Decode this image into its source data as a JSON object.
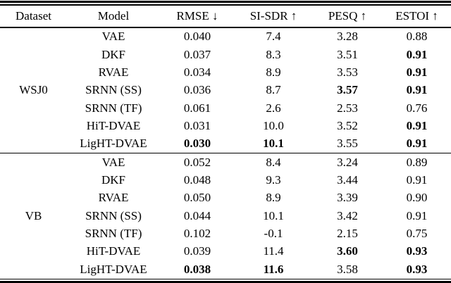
{
  "table": {
    "headers": {
      "dataset": "Dataset",
      "model": "Model",
      "rmse": "RMSE ↓",
      "sisdr": "SI-SDR ↑",
      "pesq": "PESQ ↑",
      "estoi": "ESTOI ↑"
    },
    "sections": [
      {
        "dataset": "WSJ0",
        "rows": [
          {
            "model": "VAE",
            "rmse": "0.040",
            "sisdr": "7.4",
            "pesq": "3.28",
            "estoi": "0.88"
          },
          {
            "model": "DKF",
            "rmse": "0.037",
            "sisdr": "8.3",
            "pesq": "3.51",
            "estoi": "0.91",
            "estoi_b": true
          },
          {
            "model": "RVAE",
            "rmse": "0.034",
            "sisdr": "8.9",
            "pesq": "3.53",
            "estoi": "0.91",
            "estoi_b": true
          },
          {
            "model": "SRNN (SS)",
            "rmse": "0.036",
            "sisdr": "8.7",
            "pesq": "3.57",
            "pesq_b": true,
            "estoi": "0.91",
            "estoi_b": true
          },
          {
            "model": "SRNN (TF)",
            "rmse": "0.061",
            "sisdr": "2.6",
            "pesq": "2.53",
            "estoi": "0.76"
          },
          {
            "model": "HiT-DVAE",
            "rmse": "0.031",
            "sisdr": "10.0",
            "pesq": "3.52",
            "estoi": "0.91",
            "estoi_b": true
          },
          {
            "model": "LigHT-DVAE",
            "rmse": "0.030",
            "rmse_b": true,
            "sisdr": "10.1",
            "sisdr_b": true,
            "pesq": "3.55",
            "estoi": "0.91",
            "estoi_b": true
          }
        ]
      },
      {
        "dataset": "VB",
        "rows": [
          {
            "model": "VAE",
            "rmse": "0.052",
            "sisdr": "8.4",
            "pesq": "3.24",
            "estoi": "0.89"
          },
          {
            "model": "DKF",
            "rmse": "0.048",
            "sisdr": "9.3",
            "pesq": "3.44",
            "estoi": "0.91"
          },
          {
            "model": "RVAE",
            "rmse": "0.050",
            "sisdr": "8.9",
            "pesq": "3.39",
            "estoi": "0.90"
          },
          {
            "model": "SRNN (SS)",
            "rmse": "0.044",
            "sisdr": "10.1",
            "pesq": "3.42",
            "estoi": "0.91"
          },
          {
            "model": "SRNN (TF)",
            "rmse": "0.102",
            "sisdr": "-0.1",
            "pesq": "2.15",
            "estoi": "0.75"
          },
          {
            "model": "HiT-DVAE",
            "rmse": "0.039",
            "sisdr": "11.4",
            "pesq": "3.60",
            "pesq_b": true,
            "estoi": "0.93",
            "estoi_b": true
          },
          {
            "model": "LigHT-DVAE",
            "rmse": "0.038",
            "rmse_b": true,
            "sisdr": "11.6",
            "sisdr_b": true,
            "pesq": "3.58",
            "estoi": "0.93",
            "estoi_b": true
          }
        ]
      }
    ]
  }
}
